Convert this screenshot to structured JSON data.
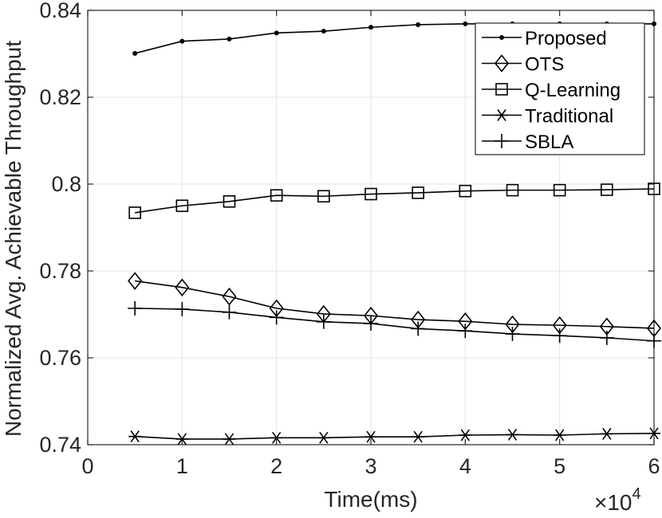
{
  "chart_data": {
    "type": "line",
    "title": "",
    "xlabel": "Time(ms)",
    "ylabel": "Normalized Avg. Achievable Throughput",
    "x_multiplier": "×10",
    "x_multiplier_exp": "4",
    "xlim": [
      0,
      6
    ],
    "ylim": [
      0.74,
      0.84
    ],
    "x_ticks": [
      0,
      1,
      2,
      3,
      4,
      5,
      6
    ],
    "x_tick_labels": [
      "0",
      "1",
      "2",
      "3",
      "4",
      "5",
      "6"
    ],
    "y_ticks": [
      0.74,
      0.76,
      0.78,
      0.8,
      0.82,
      0.84
    ],
    "y_tick_labels": [
      "0.74",
      "0.76",
      "0.78",
      "0.8",
      "0.82",
      "0.84"
    ],
    "grid": true,
    "legend_position": "top-right",
    "x": [
      0.5,
      1,
      1.5,
      2,
      2.5,
      3,
      3.5,
      4,
      4.5,
      5,
      5.5,
      6
    ],
    "series": [
      {
        "name": "Proposed",
        "marker": "dot",
        "values": [
          0.8301,
          0.8329,
          0.8334,
          0.8348,
          0.8352,
          0.8361,
          0.8367,
          0.8369,
          0.8369,
          0.8369,
          0.8369,
          0.8369
        ]
      },
      {
        "name": "OTS",
        "marker": "diamond",
        "values": [
          0.7777,
          0.7762,
          0.7741,
          0.7714,
          0.7701,
          0.7697,
          0.7688,
          0.7684,
          0.7677,
          0.7675,
          0.7672,
          0.7668
        ]
      },
      {
        "name": "Q-Learning",
        "marker": "square",
        "values": [
          0.7934,
          0.795,
          0.796,
          0.7974,
          0.7972,
          0.7977,
          0.798,
          0.7984,
          0.7986,
          0.7986,
          0.7987,
          0.7989
        ]
      },
      {
        "name": "Traditional",
        "marker": "asterisk",
        "values": [
          0.7419,
          0.7413,
          0.7413,
          0.7416,
          0.7416,
          0.7418,
          0.7418,
          0.7422,
          0.7423,
          0.7422,
          0.7425,
          0.7426
        ]
      },
      {
        "name": "SBLA",
        "marker": "plus",
        "values": [
          0.7714,
          0.7712,
          0.7705,
          0.7693,
          0.7683,
          0.7679,
          0.7667,
          0.7662,
          0.7655,
          0.7651,
          0.7646,
          0.7639
        ]
      }
    ]
  }
}
